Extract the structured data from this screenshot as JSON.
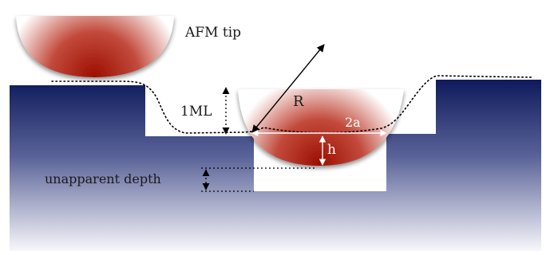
{
  "labels": {
    "afm_tip": "AFM tip",
    "monolayer": "1ML",
    "radius": "R",
    "contact_width": "2a",
    "indent_height": "h",
    "unapparent_depth": "unapparent depth"
  },
  "colors": {
    "substrate_top": "#0e1a5c",
    "substrate_bottom": "#f7f7fb",
    "tip_core": "#9c0f00",
    "tip_edge": "#ffffff",
    "line": "#000000"
  }
}
